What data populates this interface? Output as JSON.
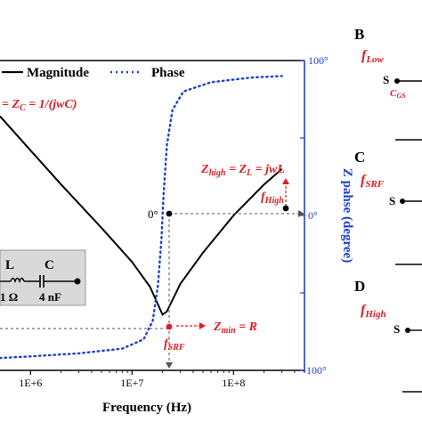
{
  "chart_data": {
    "type": "line",
    "xscale": "log",
    "xlim": [
      500000,
      500000000
    ],
    "xlabel": "Frequency (Hz)",
    "xtick_labels": [
      "1E+6",
      "1E+7",
      "1E+8"
    ],
    "xtick_values": [
      1000000,
      10000000,
      100000000
    ],
    "y2label": "Z pahse (degree)",
    "y2lim": [
      -100,
      100
    ],
    "y2_tick_labels": [
      "100°",
      "0°",
      "-100°"
    ],
    "legend": {
      "position": "top",
      "entries": [
        "Magnitude",
        "Phase"
      ]
    },
    "series": [
      {
        "name": "Magnitude",
        "style": "solid",
        "color": "#000000",
        "axis": "left-relative",
        "x": [
          500000,
          1000000,
          2000000,
          5000000,
          10000000,
          15000000,
          20000000,
          22000000,
          30000000,
          50000000,
          100000000,
          200000000,
          300000000
        ],
        "y": [
          0.82,
          0.71,
          0.6,
          0.46,
          0.35,
          0.27,
          0.18,
          0.19,
          0.28,
          0.38,
          0.5,
          0.6,
          0.65
        ]
      },
      {
        "name": "Phase",
        "style": "dotted",
        "color": "#1f3fd1",
        "axis": "right",
        "x": [
          500000,
          1000000,
          3000000,
          8000000,
          13000000,
          16000000,
          18000000,
          19500000,
          20000000,
          20500000,
          22000000,
          25000000,
          32000000,
          60000000,
          150000000,
          300000000
        ],
        "y": [
          -92,
          -91,
          -89,
          -86,
          -80,
          -68,
          -45,
          -15,
          0,
          15,
          45,
          68,
          80,
          86,
          89,
          90
        ]
      }
    ],
    "annotations": {
      "zc_equation": "= Z",
      "zc_sub": "C",
      "zc_rest": " = 1/(jwC)",
      "zhigh_label": "Z",
      "zhigh_sub": "high",
      "zhigh_rest": " = Z",
      "zl_sub": "L",
      "zhigh_tail": " = jwL",
      "fhigh": "f",
      "fhigh_sub": "High",
      "zero_left": "0°",
      "zero_right": "0°",
      "zmin_text": "Z",
      "zmin_sub": "min",
      "zmin_rest": " = R",
      "fsrf": "f",
      "fsrf_sub": "SRF"
    },
    "circuit": {
      "l_label": "L",
      "c_label": "C",
      "r_value": "1 Ω",
      "c_value": "4 nF"
    }
  },
  "side_panels": {
    "b_letter": "B",
    "b_f": "f",
    "b_f_sub": "Low",
    "b_s": "S",
    "b_cgs": "C",
    "b_cgs_sub": "GS",
    "c_letter": "C",
    "c_f": "f",
    "c_f_sub": "SRF",
    "c_s": "S",
    "d_letter": "D",
    "d_f": "f",
    "d_f_sub": "High",
    "d_s": "S"
  },
  "colors": {
    "red": "#e31b23",
    "blue": "#1f3fd1",
    "black": "#000000",
    "circuit_bg": "#d9d9d9"
  }
}
